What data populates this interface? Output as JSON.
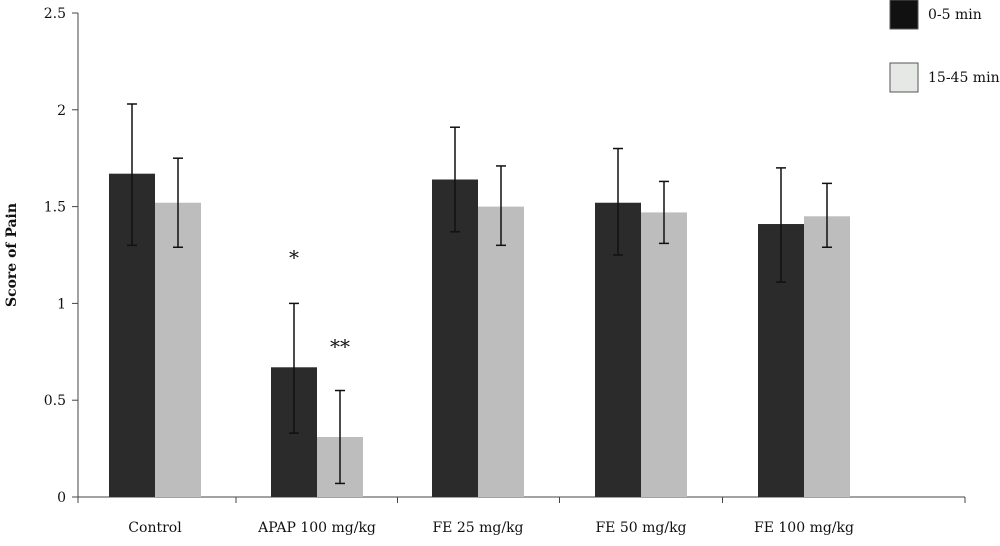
{
  "chart_data": {
    "type": "bar",
    "categories": [
      "Control",
      "APAP 100 mg/kg",
      "FE 25 mg/kg",
      "FE 50 mg/kg",
      "FE 100 mg/kg"
    ],
    "series": [
      {
        "name": "0-5 min",
        "color": "#2b2b2b",
        "values": [
          1.67,
          0.67,
          1.64,
          1.52,
          1.41
        ],
        "error_upper": [
          2.03,
          1.0,
          1.91,
          1.8,
          1.7
        ],
        "error_lower": [
          1.3,
          0.33,
          1.37,
          1.25,
          1.11
        ]
      },
      {
        "name": "15-45 min",
        "color": "#bdbdbd",
        "values": [
          1.52,
          0.31,
          1.5,
          1.47,
          1.45
        ],
        "error_upper": [
          1.75,
          0.55,
          1.71,
          1.63,
          1.62
        ],
        "error_lower": [
          1.29,
          0.07,
          1.3,
          1.31,
          1.29
        ]
      }
    ],
    "annotations": [
      {
        "text": "*",
        "category": "APAP 100 mg/kg",
        "series": "0-5 min",
        "y": 1.2
      },
      {
        "text": "**",
        "category": "APAP 100 mg/kg",
        "series": "15-45 min",
        "y": 0.74
      }
    ],
    "title": "",
    "xlabel": "",
    "ylabel": "Score of Pain",
    "yticks": [
      "0",
      "0.5",
      "1",
      "1.5",
      "2",
      "2.5"
    ],
    "ylim": [
      0,
      2.5
    ],
    "grid": false,
    "legend_position": "top-right",
    "legend_swatch_colors": [
      "#111111",
      "#e6e8e6"
    ]
  }
}
